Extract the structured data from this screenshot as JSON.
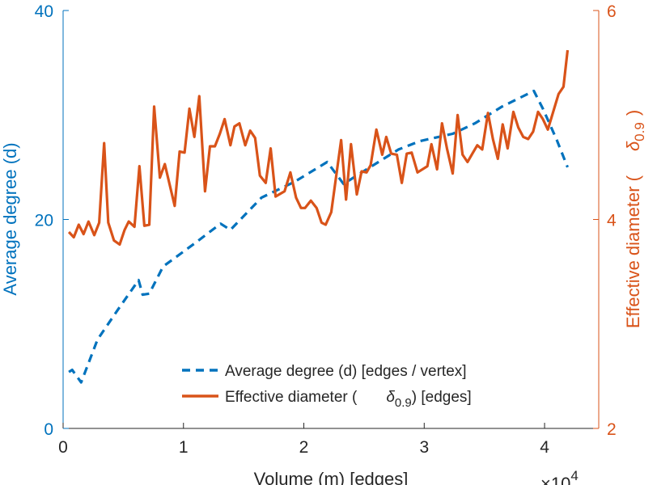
{
  "chart_data": {
    "type": "line",
    "xlabel": "Volume (m) [edges]",
    "x_multiplier": "×10",
    "x_multiplier_exp": "4",
    "xlim": [
      0,
      4.45
    ],
    "xticks": [
      "0",
      "1",
      "2",
      "3",
      "4"
    ],
    "ylabel_left": "Average degree (d)",
    "ylim_left": [
      0,
      40
    ],
    "yticks_left": [
      "0",
      "20",
      "40"
    ],
    "ylabel_right": "Effective diameter (",
    "ylabel_right_symbol": "δ",
    "ylabel_right_sub": "0.9",
    "ylabel_right_end": ")",
    "ylim_right": [
      2,
      6
    ],
    "yticks_right": [
      "2",
      "4",
      "6"
    ],
    "grid": false,
    "legend_position": "bottom-center",
    "colors": {
      "left": "#0072BD",
      "right": "#D95319",
      "axis": "#262626"
    },
    "series": [
      {
        "name": "Average degree (d) [edges / vertex]",
        "axis": "left",
        "style": "dashed",
        "x": [
          0.048,
          0.075,
          0.15,
          0.286,
          0.457,
          0.627,
          0.661,
          0.716,
          0.831,
          1.104,
          1.308,
          1.39,
          1.649,
          1.922,
          2.194,
          2.33,
          2.467,
          2.787,
          2.964,
          3.237,
          3.421,
          3.646,
          3.911,
          3.986,
          4.102,
          4.191
        ],
        "y": [
          5.4,
          5.6,
          4.4,
          8.5,
          11.4,
          14.2,
          12.8,
          12.9,
          15.5,
          17.8,
          19.6,
          19.0,
          22.1,
          23.6,
          25.5,
          23.4,
          24.4,
          26.7,
          27.5,
          28.2,
          29.2,
          30.8,
          32.3,
          30.6,
          27.6,
          25.0
        ]
      },
      {
        "name": "Effective diameter (",
        "name_symbol": "δ",
        "name_sub": "0.9",
        "name_end": ") [edges]",
        "axis": "right",
        "style": "solid",
        "x": [
          0.048,
          0.089,
          0.13,
          0.17,
          0.211,
          0.259,
          0.3,
          0.341,
          0.375,
          0.422,
          0.47,
          0.511,
          0.545,
          0.593,
          0.634,
          0.675,
          0.716,
          0.756,
          0.804,
          0.845,
          0.927,
          0.968,
          1.009,
          1.049,
          1.09,
          1.131,
          1.179,
          1.22,
          1.261,
          1.302,
          1.342,
          1.39,
          1.424,
          1.465,
          1.513,
          1.554,
          1.595,
          1.635,
          1.683,
          1.724,
          1.765,
          1.84,
          1.888,
          1.935,
          1.976,
          2.01,
          2.058,
          2.106,
          2.147,
          2.181,
          2.228,
          2.31,
          2.351,
          2.392,
          2.44,
          2.48,
          2.521,
          2.555,
          2.603,
          2.651,
          2.685,
          2.726,
          2.773,
          2.814,
          2.855,
          2.896,
          2.944,
          3.026,
          3.06,
          3.107,
          3.148,
          3.189,
          3.237,
          3.278,
          3.319,
          3.36,
          3.4,
          3.441,
          3.482,
          3.53,
          3.571,
          3.612,
          3.652,
          3.693,
          3.741,
          3.782,
          3.823,
          3.864,
          3.905,
          3.946,
          3.986,
          4.027,
          4.116,
          4.157,
          4.191
        ],
        "y": [
          3.88,
          3.83,
          3.95,
          3.86,
          3.98,
          3.85,
          3.97,
          4.73,
          3.97,
          3.8,
          3.76,
          3.9,
          3.98,
          3.93,
          4.51,
          3.94,
          3.95,
          5.08,
          4.4,
          4.53,
          4.13,
          4.65,
          4.64,
          5.06,
          4.79,
          5.18,
          4.27,
          4.7,
          4.7,
          4.82,
          4.96,
          4.71,
          4.89,
          4.92,
          4.71,
          4.85,
          4.78,
          4.42,
          4.35,
          4.68,
          4.22,
          4.27,
          4.45,
          4.21,
          4.11,
          4.11,
          4.18,
          4.11,
          3.97,
          3.95,
          4.07,
          4.76,
          4.19,
          4.72,
          4.24,
          4.46,
          4.45,
          4.52,
          4.86,
          4.62,
          4.79,
          4.63,
          4.62,
          4.35,
          4.63,
          4.64,
          4.45,
          4.51,
          4.72,
          4.48,
          4.92,
          4.68,
          4.44,
          5.0,
          4.62,
          4.55,
          4.63,
          4.71,
          4.67,
          5.02,
          4.77,
          4.58,
          4.91,
          4.68,
          5.03,
          4.88,
          4.79,
          4.77,
          4.84,
          5.03,
          4.96,
          4.86,
          5.2,
          5.27,
          5.62
        ]
      }
    ]
  }
}
